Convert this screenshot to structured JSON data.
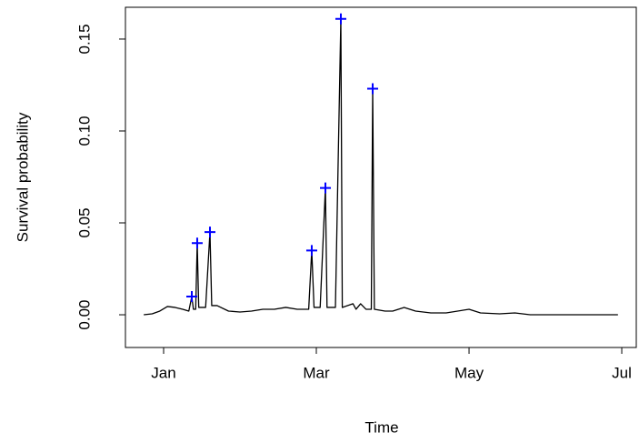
{
  "chart_data": {
    "type": "line",
    "xlabel": "Time",
    "ylabel": "Survival probability",
    "xlim": [
      0.5,
      7.19
    ],
    "ylim": [
      -0.0178,
      0.1673
    ],
    "xticks": [
      {
        "value": 1,
        "label": "Jan"
      },
      {
        "value": 3,
        "label": "Mar"
      },
      {
        "value": 5,
        "label": "May"
      },
      {
        "value": 7,
        "label": "Jul"
      }
    ],
    "yticks": [
      {
        "value": 0,
        "label": "0.00"
      },
      0.05,
      {
        "value": 0.1,
        "label": "0.10"
      },
      0.15
    ],
    "series": [
      {
        "type": "line",
        "color": "#000000",
        "x": [
          0.74,
          0.85,
          0.95,
          1.05,
          1.15,
          1.25,
          1.33,
          1.369,
          1.39,
          1.42,
          1.44,
          1.46,
          1.55,
          1.607,
          1.63,
          1.7,
          1.85,
          2.0,
          2.15,
          2.3,
          2.45,
          2.6,
          2.75,
          2.9,
          2.94,
          2.97,
          3.05,
          3.119,
          3.14,
          3.25,
          3.321,
          3.34,
          3.48,
          3.52,
          3.58,
          3.65,
          3.72,
          3.738,
          3.76,
          3.9,
          4.0,
          4.15,
          4.3,
          4.5,
          4.7,
          5.0,
          5.15,
          5.4,
          5.6,
          5.8,
          6.2,
          6.5,
          6.95
        ],
        "values": [
          0.0,
          0.0005,
          0.002,
          0.0045,
          0.004,
          0.003,
          0.002,
          0.0099,
          0.003,
          0.003,
          0.039,
          0.004,
          0.004,
          0.045,
          0.005,
          0.005,
          0.002,
          0.0015,
          0.002,
          0.003,
          0.003,
          0.004,
          0.003,
          0.003,
          0.035,
          0.004,
          0.004,
          0.069,
          0.004,
          0.004,
          0.161,
          0.004,
          0.006,
          0.003,
          0.006,
          0.003,
          0.003,
          0.123,
          0.003,
          0.002,
          0.002,
          0.004,
          0.002,
          0.001,
          0.001,
          0.003,
          0.001,
          0.0005,
          0.001,
          0.0,
          0.0,
          0.0,
          0.0
        ]
      },
      {
        "type": "scatter",
        "color": "#0000ff",
        "x": [
          1.369,
          1.44,
          1.607,
          2.94,
          3.119,
          3.321,
          3.738
        ],
        "values": [
          0.0099,
          0.039,
          0.045,
          0.035,
          0.069,
          0.161,
          0.123
        ]
      }
    ]
  }
}
